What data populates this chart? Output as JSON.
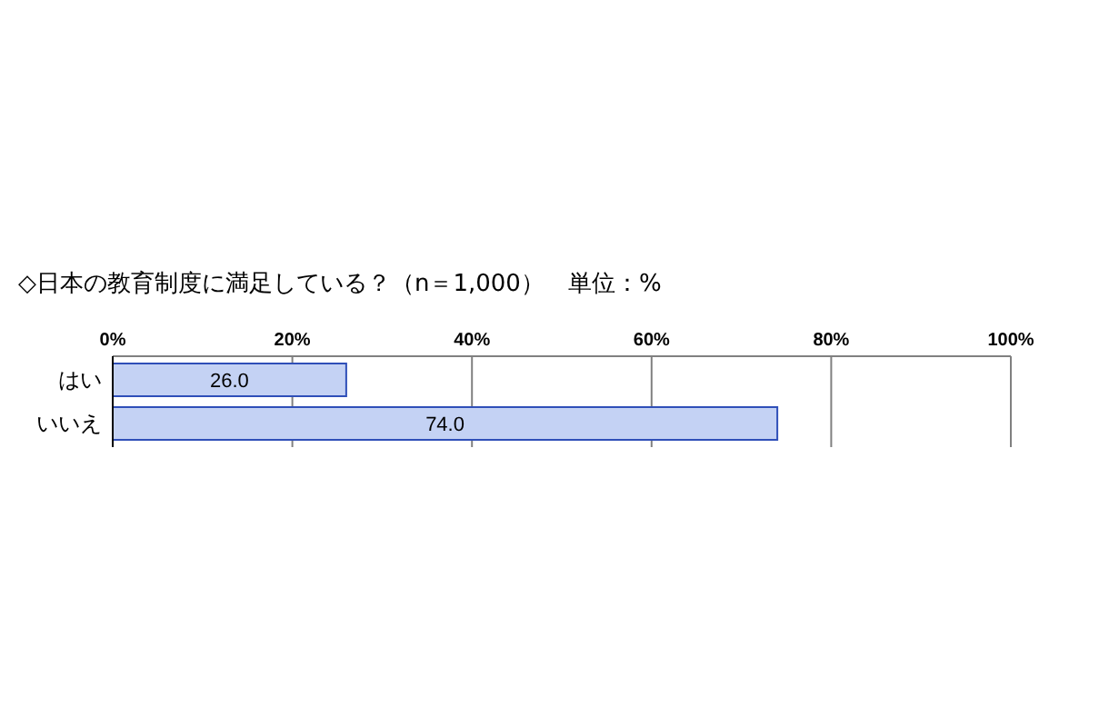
{
  "chart_data": {
    "type": "bar",
    "orientation": "horizontal",
    "title": "◇日本の教育制度に満足している？（n＝1,000）　単位：%",
    "categories": [
      "はい",
      "いいえ"
    ],
    "values": [
      26.0,
      74.0
    ],
    "value_labels": [
      "26.0",
      "74.0"
    ],
    "color": "#c4d2f4",
    "xlim": [
      0,
      100
    ],
    "xticks": [
      {
        "value": 0,
        "label": "0%"
      },
      {
        "value": 20,
        "label": "20%"
      },
      {
        "value": 40,
        "label": "40%"
      },
      {
        "value": 60,
        "label": "60%"
      },
      {
        "value": 80,
        "label": "80%"
      },
      {
        "value": 100,
        "label": "100%"
      }
    ],
    "grid": "x"
  }
}
